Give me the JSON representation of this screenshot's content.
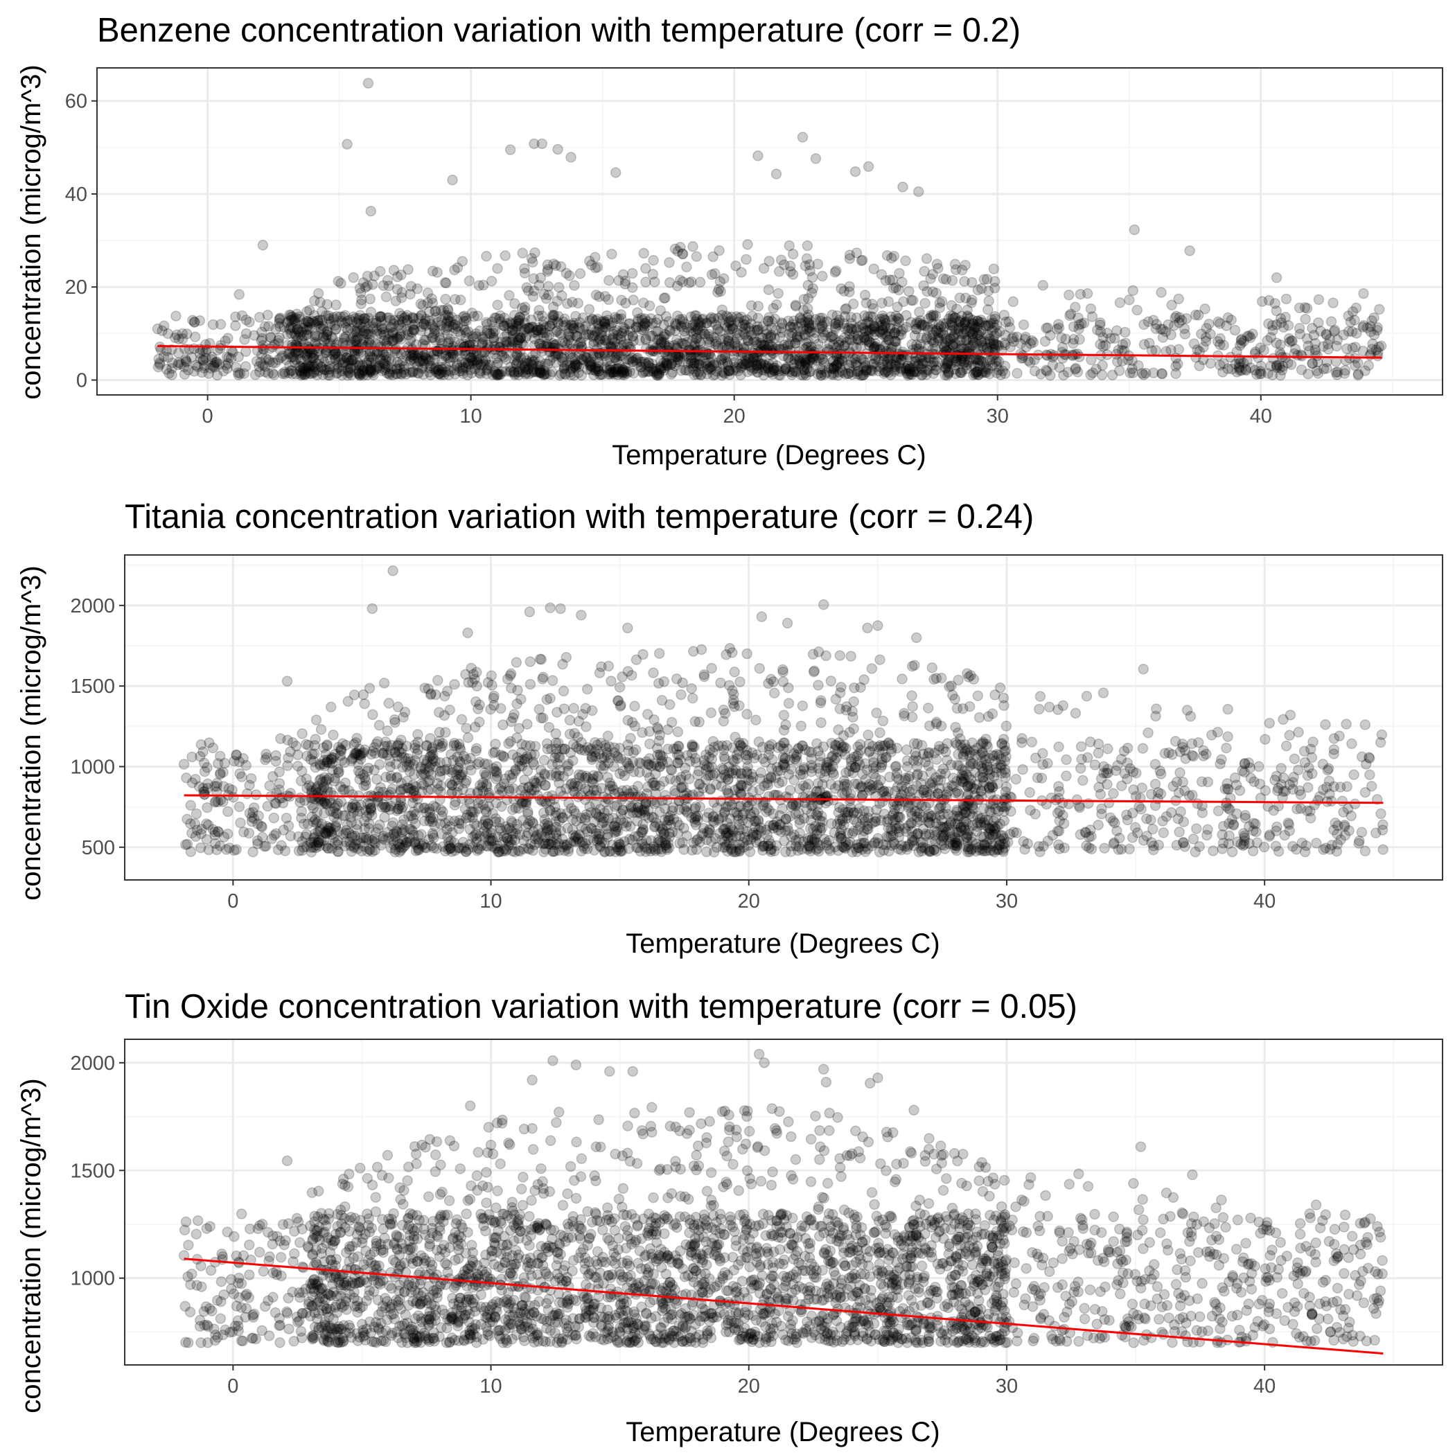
{
  "colors": {
    "points": "#000000",
    "point_opacity": 0.2,
    "fit_line": "#ff0000",
    "grid_major": "#ebebeb",
    "grid_minor": "#f5f5f5",
    "panel_border": "#333333",
    "tick_text": "#4d4d4d"
  },
  "chart_data": [
    {
      "type": "scatter",
      "title": "Benzene concentration variation with temperature (corr = 0.2)",
      "xlabel": "Temperature (Degrees C)",
      "ylabel": "concentration (microg/m^3)",
      "xlim": [
        -4.2,
        46.9
      ],
      "ylim": [
        -3.2,
        67.1
      ],
      "xticks": [
        0,
        10,
        20,
        30,
        40
      ],
      "yticks": [
        0,
        20,
        40,
        60
      ],
      "grid": true,
      "point_cloud": {
        "x_range": [
          -1.9,
          44.6
        ],
        "typical_low_y": 1.0,
        "dense_upper_y": 14,
        "envelope_x": [
          0,
          3,
          5,
          10,
          15,
          20,
          25,
          30,
          35,
          40,
          44
        ],
        "envelope_upper_y": [
          8,
          14,
          22,
          27,
          28,
          30,
          28,
          24,
          20,
          18,
          16
        ],
        "n_points": 3200
      },
      "outliers": [
        {
          "x": -1.9,
          "y": 11.0
        },
        {
          "x": -0.5,
          "y": 12.4
        },
        {
          "x": 1.2,
          "y": 18.4
        },
        {
          "x": 2.1,
          "y": 29.0
        },
        {
          "x": 5.3,
          "y": 50.7
        },
        {
          "x": 6.1,
          "y": 63.8
        },
        {
          "x": 6.2,
          "y": 36.3
        },
        {
          "x": 9.3,
          "y": 43.0
        },
        {
          "x": 11.5,
          "y": 49.5
        },
        {
          "x": 12.4,
          "y": 50.8
        },
        {
          "x": 12.7,
          "y": 50.8
        },
        {
          "x": 13.3,
          "y": 49.6
        },
        {
          "x": 13.8,
          "y": 47.9
        },
        {
          "x": 15.5,
          "y": 44.6
        },
        {
          "x": 20.9,
          "y": 48.2
        },
        {
          "x": 21.6,
          "y": 44.3
        },
        {
          "x": 22.6,
          "y": 52.2
        },
        {
          "x": 23.1,
          "y": 47.6
        },
        {
          "x": 24.6,
          "y": 44.8
        },
        {
          "x": 25.1,
          "y": 45.9
        },
        {
          "x": 26.4,
          "y": 41.5
        },
        {
          "x": 27.0,
          "y": 40.5
        },
        {
          "x": 35.2,
          "y": 32.3
        },
        {
          "x": 37.3,
          "y": 27.8
        },
        {
          "x": 40.6,
          "y": 22.0
        },
        {
          "x": 42.2,
          "y": 17.3
        },
        {
          "x": 43.9,
          "y": 18.6
        },
        {
          "x": 44.5,
          "y": 15.2
        }
      ],
      "fit_line": {
        "x": [
          -1.9,
          44.6
        ],
        "y": [
          7.3,
          4.8
        ]
      }
    },
    {
      "type": "scatter",
      "title": "Titania concentration variation with temperature (corr = 0.24)",
      "xlabel": "Temperature (Degrees C)",
      "ylabel": "concentration (microg/m^3)",
      "xlim": [
        -4.2,
        46.9
      ],
      "ylim": [
        297,
        2313
      ],
      "xticks": [
        0,
        10,
        20,
        30,
        40
      ],
      "yticks": [
        500,
        1000,
        1500,
        2000
      ],
      "grid": true,
      "point_cloud": {
        "x_range": [
          -1.9,
          44.6
        ],
        "typical_low_y": 470,
        "dense_upper_y": 1150,
        "envelope_x": [
          0,
          3,
          5,
          10,
          15,
          20,
          25,
          30,
          35,
          40,
          44
        ],
        "envelope_upper_y": [
          1000,
          1300,
          1500,
          1650,
          1700,
          1750,
          1700,
          1550,
          1450,
          1350,
          1250
        ],
        "n_points": 3200
      },
      "outliers": [
        {
          "x": -1.9,
          "y": 1015
        },
        {
          "x": -0.5,
          "y": 1065
        },
        {
          "x": 2.1,
          "y": 1530
        },
        {
          "x": 5.4,
          "y": 1980
        },
        {
          "x": 6.2,
          "y": 2215
        },
        {
          "x": 9.1,
          "y": 1830
        },
        {
          "x": 11.5,
          "y": 1960
        },
        {
          "x": 12.3,
          "y": 1985
        },
        {
          "x": 12.7,
          "y": 1980
        },
        {
          "x": 13.5,
          "y": 1940
        },
        {
          "x": 15.3,
          "y": 1860
        },
        {
          "x": 20.5,
          "y": 1930
        },
        {
          "x": 21.5,
          "y": 1890
        },
        {
          "x": 22.9,
          "y": 2005
        },
        {
          "x": 24.6,
          "y": 1860
        },
        {
          "x": 25.0,
          "y": 1875
        },
        {
          "x": 26.5,
          "y": 1800
        },
        {
          "x": 35.3,
          "y": 1605
        },
        {
          "x": 37.0,
          "y": 1350
        },
        {
          "x": 41.0,
          "y": 1320
        },
        {
          "x": 42.9,
          "y": 1190
        },
        {
          "x": 43.9,
          "y": 1260
        },
        {
          "x": 44.5,
          "y": 1150
        }
      ],
      "fit_line": {
        "x": [
          -1.9,
          44.6
        ],
        "y": [
          822,
          775
        ]
      }
    },
    {
      "type": "scatter",
      "title": "Tin Oxide concentration variation with temperature (corr = 0.05)",
      "xlabel": "Temperature (Degrees C)",
      "ylabel": "concentration (microg/m^3)",
      "xlim": [
        -4.2,
        46.9
      ],
      "ylim": [
        597,
        2109
      ],
      "xticks": [
        0,
        10,
        20,
        30,
        40
      ],
      "yticks": [
        1000,
        1500,
        2000
      ],
      "grid": true,
      "point_cloud": {
        "x_range": [
          -1.9,
          44.6
        ],
        "typical_low_y": 700,
        "dense_upper_y": 1300,
        "envelope_x": [
          0,
          3,
          5,
          10,
          15,
          20,
          25,
          30,
          35,
          40,
          44
        ],
        "envelope_upper_y": [
          1100,
          1400,
          1550,
          1750,
          1800,
          1800,
          1750,
          1550,
          1450,
          1350,
          1250
        ],
        "n_points": 3200
      },
      "outliers": [
        {
          "x": -1.9,
          "y": 1105
        },
        {
          "x": -0.4,
          "y": 1100
        },
        {
          "x": 2.1,
          "y": 1545
        },
        {
          "x": 9.2,
          "y": 1800
        },
        {
          "x": 11.6,
          "y": 1920
        },
        {
          "x": 12.4,
          "y": 2010
        },
        {
          "x": 13.3,
          "y": 1990
        },
        {
          "x": 14.6,
          "y": 1960
        },
        {
          "x": 15.5,
          "y": 1960
        },
        {
          "x": 20.4,
          "y": 2040
        },
        {
          "x": 20.6,
          "y": 2000
        },
        {
          "x": 22.9,
          "y": 1970
        },
        {
          "x": 23.0,
          "y": 1910
        },
        {
          "x": 24.7,
          "y": 1905
        },
        {
          "x": 25.0,
          "y": 1930
        },
        {
          "x": 26.4,
          "y": 1780
        },
        {
          "x": 35.2,
          "y": 1610
        },
        {
          "x": 37.2,
          "y": 1480
        },
        {
          "x": 42.0,
          "y": 1340
        },
        {
          "x": 43.9,
          "y": 1260
        },
        {
          "x": 44.5,
          "y": 1190
        }
      ],
      "fit_line": {
        "x": [
          -1.9,
          44.6
        ],
        "y": [
          1090,
          650
        ]
      }
    }
  ]
}
